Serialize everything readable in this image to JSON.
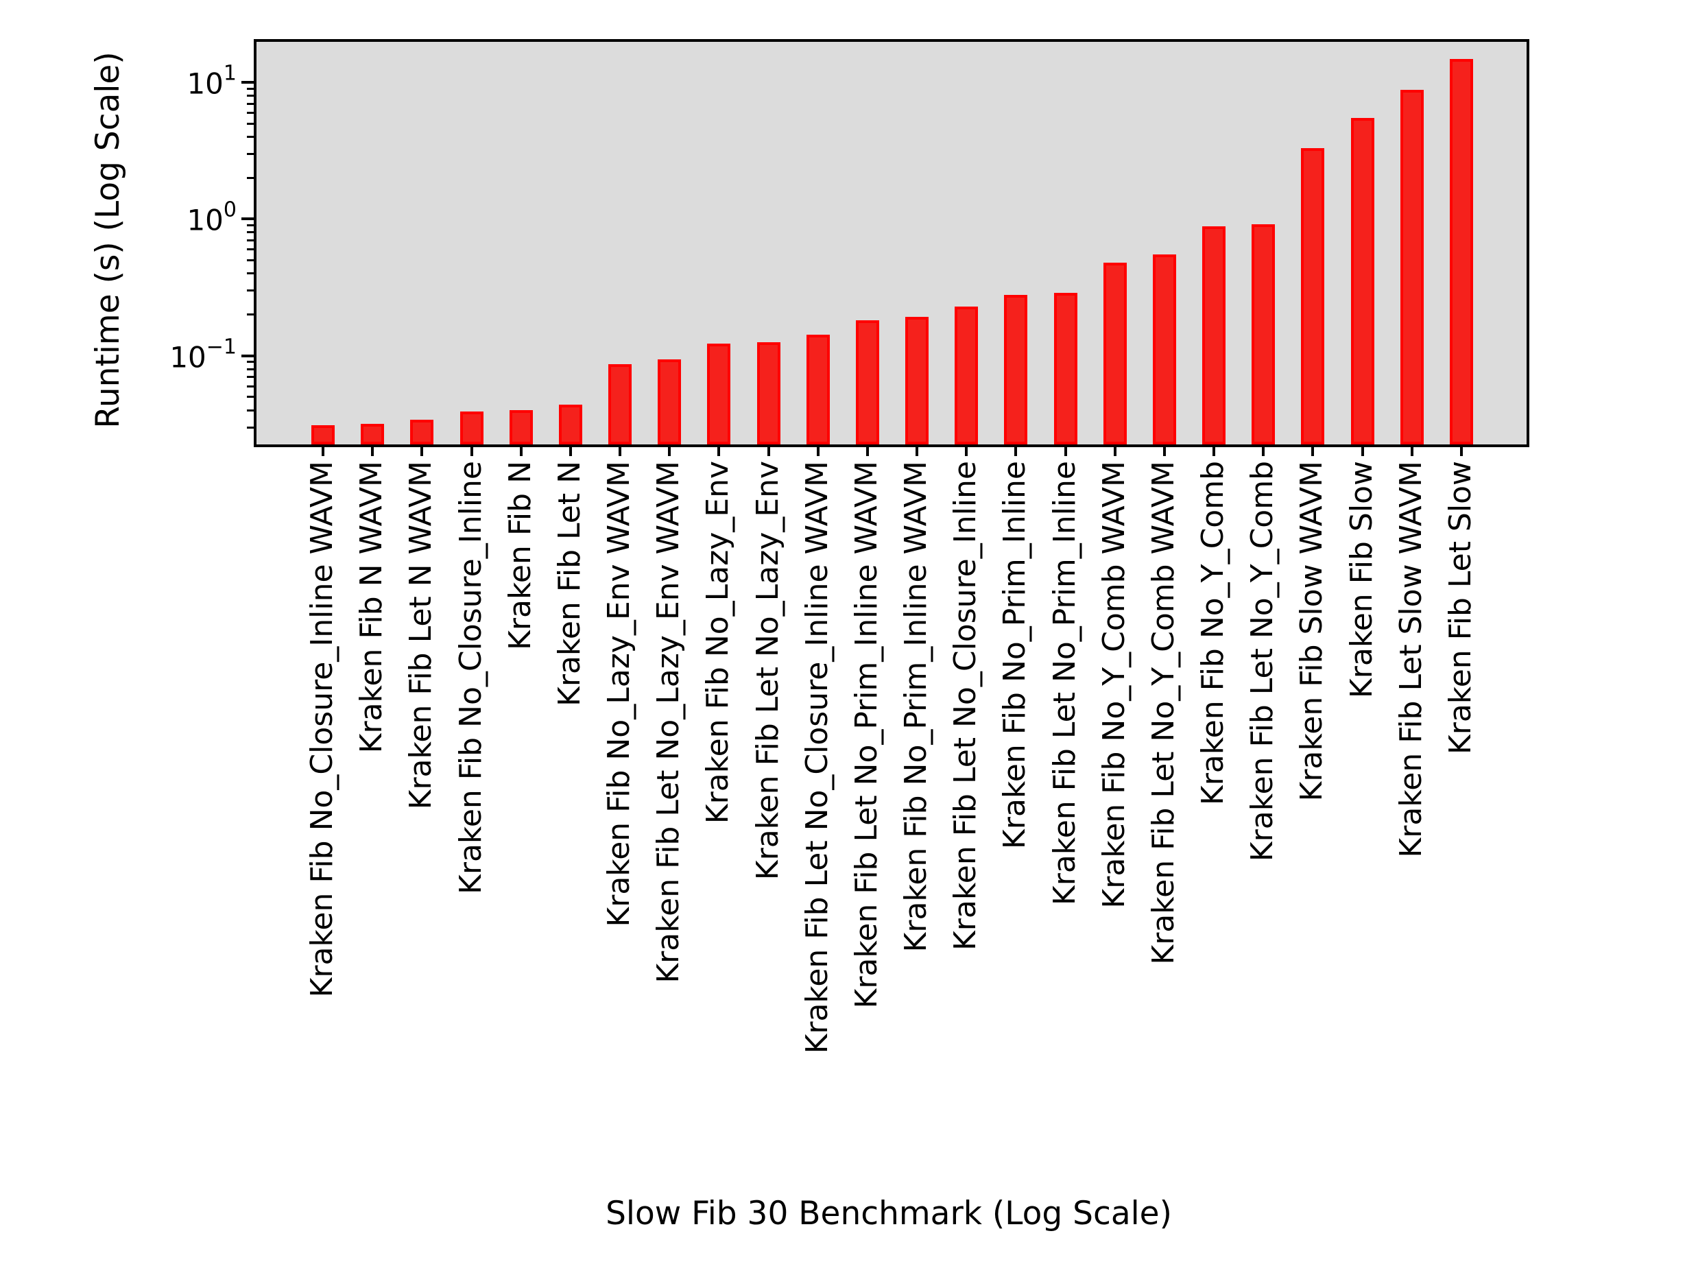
{
  "chart_data": {
    "type": "bar",
    "title": "",
    "xlabel": "Slow Fib 30 Benchmark (Log Scale)",
    "ylabel": "Runtime (s) (Log Scale)",
    "y_scale": "log",
    "ylim": [
      0.0225,
      19.8
    ],
    "grid": false,
    "legend": "empty rounded box, top-right inside axes",
    "plot_background": "#dcdcdc",
    "figure_background": "#ffffff",
    "bar_fill_color": "#f5211c",
    "bar_edge_color": "#ff0000",
    "spine_color": "#000000",
    "yticks": [
      {
        "value": 10,
        "base": "10",
        "exponent": "1"
      },
      {
        "value": 1,
        "base": "10",
        "exponent": "0"
      },
      {
        "value": 0.1,
        "base": "10",
        "exponent": "−1"
      }
    ],
    "categories": [
      "Kraken Fib No_Closure_Inline WAVM",
      "Kraken Fib N WAVM",
      "Kraken Fib Let N WAVM",
      "Kraken Fib No_Closure_Inline",
      "Kraken Fib N",
      "Kraken Fib Let N",
      "Kraken Fib No_Lazy_Env WAVM",
      "Kraken Fib Let No_Lazy_Env WAVM",
      "Kraken Fib No_Lazy_Env",
      "Kraken Fib Let No_Lazy_Env",
      "Kraken Fib Let No_Closure_Inline WAVM",
      "Kraken Fib Let No_Prim_Inline WAVM",
      "Kraken Fib No_Prim_Inline WAVM",
      "Kraken Fib Let No_Closure_Inline",
      "Kraken Fib No_Prim_Inline",
      "Kraken Fib Let No_Prim_Inline",
      "Kraken Fib No_Y_Comb WAVM",
      "Kraken Fib Let No_Y_Comb WAVM",
      "Kraken Fib No_Y_Comb",
      "Kraken Fib Let No_Y_Comb",
      "Kraken Fib Slow WAVM",
      "Kraken Fib Slow",
      "Kraken Fib Let Slow WAVM",
      "Kraken Fib Let Slow"
    ],
    "values": [
      0.031,
      0.032,
      0.034,
      0.039,
      0.04,
      0.044,
      0.087,
      0.094,
      0.123,
      0.126,
      0.143,
      0.182,
      0.193,
      0.23,
      0.28,
      0.29,
      0.48,
      0.55,
      0.89,
      0.92,
      3.3,
      5.5,
      8.8,
      14.8
    ]
  }
}
